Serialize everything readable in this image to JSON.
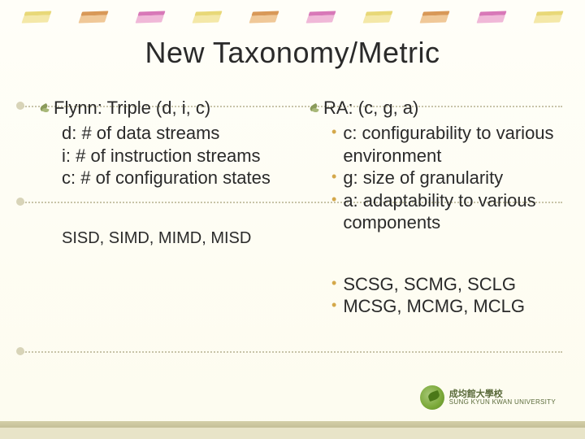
{
  "title": "New Taxonomy/Metric",
  "title_fontsize": 36,
  "title_color": "#2a2a2a",
  "background_gradient": [
    "#fffef8",
    "#fdfcef"
  ],
  "eraser_colors": [
    {
      "top": "#e8d878",
      "body": "#f4e8a8"
    },
    {
      "top": "#d89858",
      "body": "#f0c898"
    },
    {
      "top": "#d878b8",
      "body": "#f0b8d8"
    },
    {
      "top": "#e8d878",
      "body": "#f4e8a8"
    },
    {
      "top": "#d89858",
      "body": "#f0c898"
    },
    {
      "top": "#d878b8",
      "body": "#f0b8d8"
    },
    {
      "top": "#e8d878",
      "body": "#f4e8a8"
    },
    {
      "top": "#d89858",
      "body": "#f0c898"
    },
    {
      "top": "#d878b8",
      "body": "#f0b8d8"
    },
    {
      "top": "#e8d878",
      "body": "#f4e8a8"
    }
  ],
  "dotted_line_positions": [
    130,
    248,
    432
  ],
  "side_dot_positions": [
    130,
    248,
    432
  ],
  "dotted_color": "#c8c4a8",
  "left": {
    "heading": "Flynn: Triple (d, i, c)",
    "lines": [
      "d: # of data streams",
      "i:  # of instruction streams",
      "c: # of configuration states"
    ],
    "bottom": "SISD, SIMD, MIMD, MISD"
  },
  "right": {
    "heading": "RA: (c, g, a)",
    "bullets": [
      "c: configurability to various environment",
      "g: size of granularity",
      "a: adaptability to various components"
    ],
    "bottom_bullets": [
      "SCSG, SCMG, SCLG",
      "MCSG, MCMG, MCLG"
    ]
  },
  "bullet_color": "#d4a84a",
  "body_fontsize": 22,
  "body_color": "#2a2a2a",
  "logo": {
    "cn": "成均館大學校",
    "en": "SUNG KYUN KWAN UNIVERSITY",
    "circle_colors": [
      "#a8c878",
      "#7aa838",
      "#5a8828"
    ]
  },
  "bottom_bar_color": "#d4cfa8"
}
